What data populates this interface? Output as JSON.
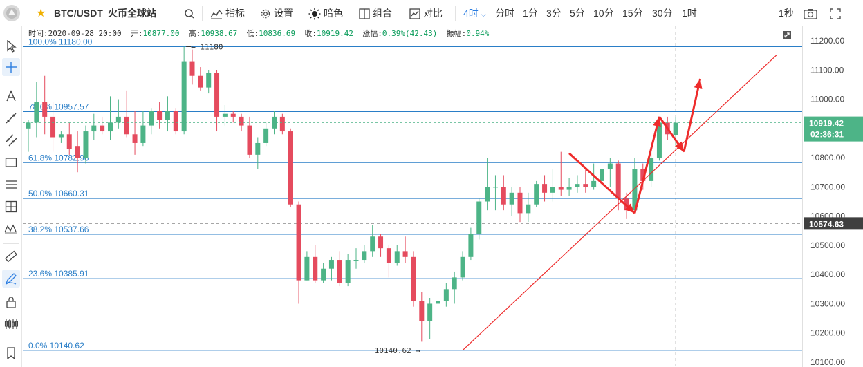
{
  "header": {
    "symbol": "BTC/USDT",
    "exchange": "火币全球站",
    "indicators": "指标",
    "settings": "设置",
    "theme": "暗色",
    "combine": "组合",
    "compare": "对比",
    "interval_active": "4时",
    "intervals": [
      "分时",
      "1分",
      "3分",
      "5分",
      "10分",
      "15分",
      "30分",
      "1时"
    ],
    "refresh": "1秒"
  },
  "ohlc_bar": {
    "time_label": "时间:",
    "time": "2020-09-28 20:00",
    "open_label": "开:",
    "open": "10877.00",
    "high_label": "高:",
    "high": "10938.67",
    "low_label": "低:",
    "low": "10836.69",
    "close_label": "收:",
    "close": "10919.42",
    "change_label": "涨幅:",
    "change": "0.39%(42.43)",
    "amp_label": "振幅:",
    "amp": "0.94%"
  },
  "colors": {
    "up": "#4db487",
    "down": "#e54b5e",
    "fib_line": "#2a7ec7",
    "fib_text": "#2a7ec7",
    "trend_line": "#ee2b2b",
    "price_tag": "#4db487",
    "cross_tag": "#3f3f3f"
  },
  "chart_data": {
    "type": "candlestick",
    "symbol": "BTC/USDT",
    "ylim": [
      10100,
      11200
    ],
    "y_ticks": [
      "10100.00",
      "10200.00",
      "10300.00",
      "10400.00",
      "10500.00",
      "10600.00",
      "10700.00",
      "10800.00",
      "10900.00",
      "11000.00",
      "11100.00",
      "11200.00"
    ],
    "last_price": "10919.42",
    "countdown": "02:36:31",
    "crosshair_price": "10574.63",
    "crosshair_value": 10574.63,
    "high_marker": "11180",
    "low_marker": "10140.62",
    "fib_levels": [
      {
        "label": "100.0% 11180.00",
        "price": 11180.0
      },
      {
        "label": "78.6% 10957.57",
        "price": 10957.57
      },
      {
        "label": "61.8% 10782.96",
        "price": 10782.96
      },
      {
        "label": "50.0% 10660.31",
        "price": 10660.31
      },
      {
        "label": "38.2% 10537.66",
        "price": 10537.66
      },
      {
        "label": "23.6% 10385.91",
        "price": 10385.91
      },
      {
        "label": "0.0% 10140.62",
        "price": 10140.62
      }
    ],
    "candles": [
      [
        10900,
        10920,
        10820,
        10930
      ],
      [
        10920,
        10990,
        10870,
        11060
      ],
      [
        10990,
        10940,
        10880,
        11080
      ],
      [
        10940,
        10870,
        10820,
        10990
      ],
      [
        10870,
        10880,
        10850,
        10890
      ],
      [
        10880,
        10830,
        10810,
        10920
      ],
      [
        10840,
        10800,
        10750,
        10890
      ],
      [
        10800,
        10890,
        10780,
        10910
      ],
      [
        10890,
        10910,
        10860,
        10950
      ],
      [
        10910,
        10890,
        10880,
        10940
      ],
      [
        10890,
        10920,
        10860,
        11010
      ],
      [
        10920,
        10940,
        10900,
        11000
      ],
      [
        10940,
        10880,
        10870,
        11030
      ],
      [
        10880,
        10850,
        10810,
        10960
      ],
      [
        10850,
        10910,
        10840,
        10960
      ],
      [
        10910,
        10960,
        10880,
        10970
      ],
      [
        10960,
        10930,
        10900,
        10990
      ],
      [
        10930,
        10960,
        10890,
        11010
      ],
      [
        10960,
        10890,
        10880,
        10970
      ],
      [
        10890,
        11130,
        10880,
        11180
      ],
      [
        11130,
        11080,
        11050,
        11170
      ],
      [
        11080,
        11040,
        11030,
        11110
      ],
      [
        11040,
        11090,
        11020,
        11100
      ],
      [
        11090,
        10940,
        10890,
        11100
      ],
      [
        10940,
        10950,
        10910,
        10980
      ],
      [
        10950,
        10940,
        10920,
        10960
      ],
      [
        10940,
        10910,
        10890,
        10950
      ],
      [
        10910,
        10810,
        10800,
        10940
      ],
      [
        10810,
        10850,
        10760,
        10870
      ],
      [
        10850,
        10900,
        10840,
        10920
      ],
      [
        10900,
        10940,
        10880,
        10960
      ],
      [
        10940,
        10890,
        10880,
        10950
      ],
      [
        10890,
        10640,
        10630,
        10900
      ],
      [
        10640,
        10380,
        10300,
        10650
      ],
      [
        10380,
        10460,
        10380,
        10480
      ],
      [
        10460,
        10380,
        10370,
        10500
      ],
      [
        10380,
        10420,
        10370,
        10440
      ],
      [
        10420,
        10450,
        10380,
        10460
      ],
      [
        10450,
        10370,
        10360,
        10480
      ],
      [
        10370,
        10450,
        10360,
        10470
      ],
      [
        10450,
        10450,
        10420,
        10490
      ],
      [
        10450,
        10480,
        10440,
        10500
      ],
      [
        10480,
        10530,
        10460,
        10570
      ],
      [
        10530,
        10490,
        10460,
        10540
      ],
      [
        10490,
        10440,
        10390,
        10500
      ],
      [
        10440,
        10480,
        10430,
        10500
      ],
      [
        10480,
        10460,
        10440,
        10530
      ],
      [
        10460,
        10310,
        10290,
        10480
      ],
      [
        10310,
        10240,
        10170,
        10340
      ],
      [
        10240,
        10300,
        10180,
        10320
      ],
      [
        10300,
        10310,
        10250,
        10340
      ],
      [
        10310,
        10350,
        10290,
        10370
      ],
      [
        10350,
        10390,
        10300,
        10410
      ],
      [
        10390,
        10460,
        10380,
        10480
      ],
      [
        10460,
        10540,
        10450,
        10560
      ],
      [
        10540,
        10650,
        10520,
        10660
      ],
      [
        10650,
        10700,
        10620,
        10800
      ],
      [
        10700,
        10700,
        10620,
        10740
      ],
      [
        10700,
        10640,
        10620,
        10740
      ],
      [
        10640,
        10680,
        10600,
        10700
      ],
      [
        10680,
        10610,
        10580,
        10700
      ],
      [
        10610,
        10640,
        10580,
        10680
      ],
      [
        10640,
        10710,
        10630,
        10720
      ],
      [
        10710,
        10680,
        10650,
        10740
      ],
      [
        10680,
        10700,
        10650,
        10760
      ],
      [
        10700,
        10690,
        10670,
        10820
      ],
      [
        10690,
        10700,
        10670,
        10730
      ],
      [
        10700,
        10710,
        10680,
        10740
      ],
      [
        10710,
        10700,
        10680,
        10760
      ],
      [
        10700,
        10720,
        10690,
        10780
      ],
      [
        10720,
        10760,
        10680,
        10790
      ],
      [
        10760,
        10780,
        10700,
        10800
      ],
      [
        10780,
        10660,
        10620,
        10790
      ],
      [
        10660,
        10620,
        10590,
        10680
      ],
      [
        10620,
        10760,
        10610,
        10800
      ],
      [
        10760,
        10720,
        10690,
        10780
      ],
      [
        10720,
        10800,
        10700,
        10840
      ],
      [
        10800,
        10920,
        10790,
        10940
      ],
      [
        10920,
        10880,
        10860,
        10940
      ],
      [
        10877,
        10919.42,
        10836.69,
        10938.67
      ]
    ],
    "trend_line": {
      "from": [
        53,
        10140.62
      ],
      "to": [
        78,
        10800
      ]
    },
    "drawn_path": [
      [
        66,
        10815
      ],
      [
        74,
        10610
      ],
      [
        77,
        10940
      ],
      [
        80,
        10820
      ],
      [
        82,
        11070
      ]
    ]
  }
}
